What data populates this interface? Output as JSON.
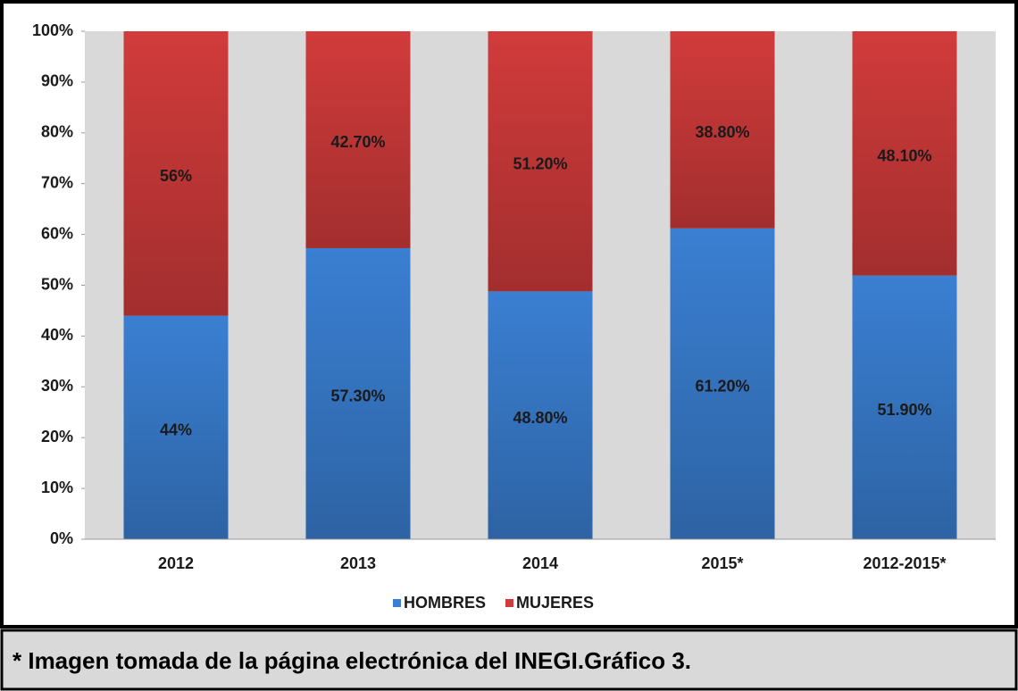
{
  "chart_data": {
    "type": "stacked_bar",
    "categories": [
      "2012",
      "2013",
      "2014",
      "2015*",
      "2012-2015*"
    ],
    "series": [
      {
        "name": "HOMBRES",
        "color": "#3a7fd2",
        "values": [
          44,
          57.3,
          48.8,
          61.2,
          51.9
        ],
        "value_labels": [
          "44%",
          "57.30%",
          "48.80%",
          "61.20%",
          "51.90%"
        ]
      },
      {
        "name": "MUJERES",
        "color": "#d13b3b",
        "values": [
          56,
          42.7,
          51.2,
          38.8,
          48.1
        ],
        "value_labels": [
          "56%",
          "42.70%",
          "51.20%",
          "38.80%",
          "48.10%"
        ]
      }
    ],
    "ylim": [
      0,
      100
    ],
    "yticks": [
      {
        "value": 0,
        "label": "0%"
      },
      {
        "value": 10,
        "label": "10%"
      },
      {
        "value": 20,
        "label": "20%"
      },
      {
        "value": 30,
        "label": "30%"
      },
      {
        "value": 40,
        "label": "40%"
      },
      {
        "value": 50,
        "label": "50%"
      },
      {
        "value": 60,
        "label": "60%"
      },
      {
        "value": 70,
        "label": "70%"
      },
      {
        "value": 80,
        "label": "80%"
      },
      {
        "value": 90,
        "label": "90%"
      },
      {
        "value": 100,
        "label": "100%"
      }
    ],
    "legend": "bottom"
  },
  "caption": "* Imagen tomada de la página electrónica del INEGI.Gráfico 3."
}
